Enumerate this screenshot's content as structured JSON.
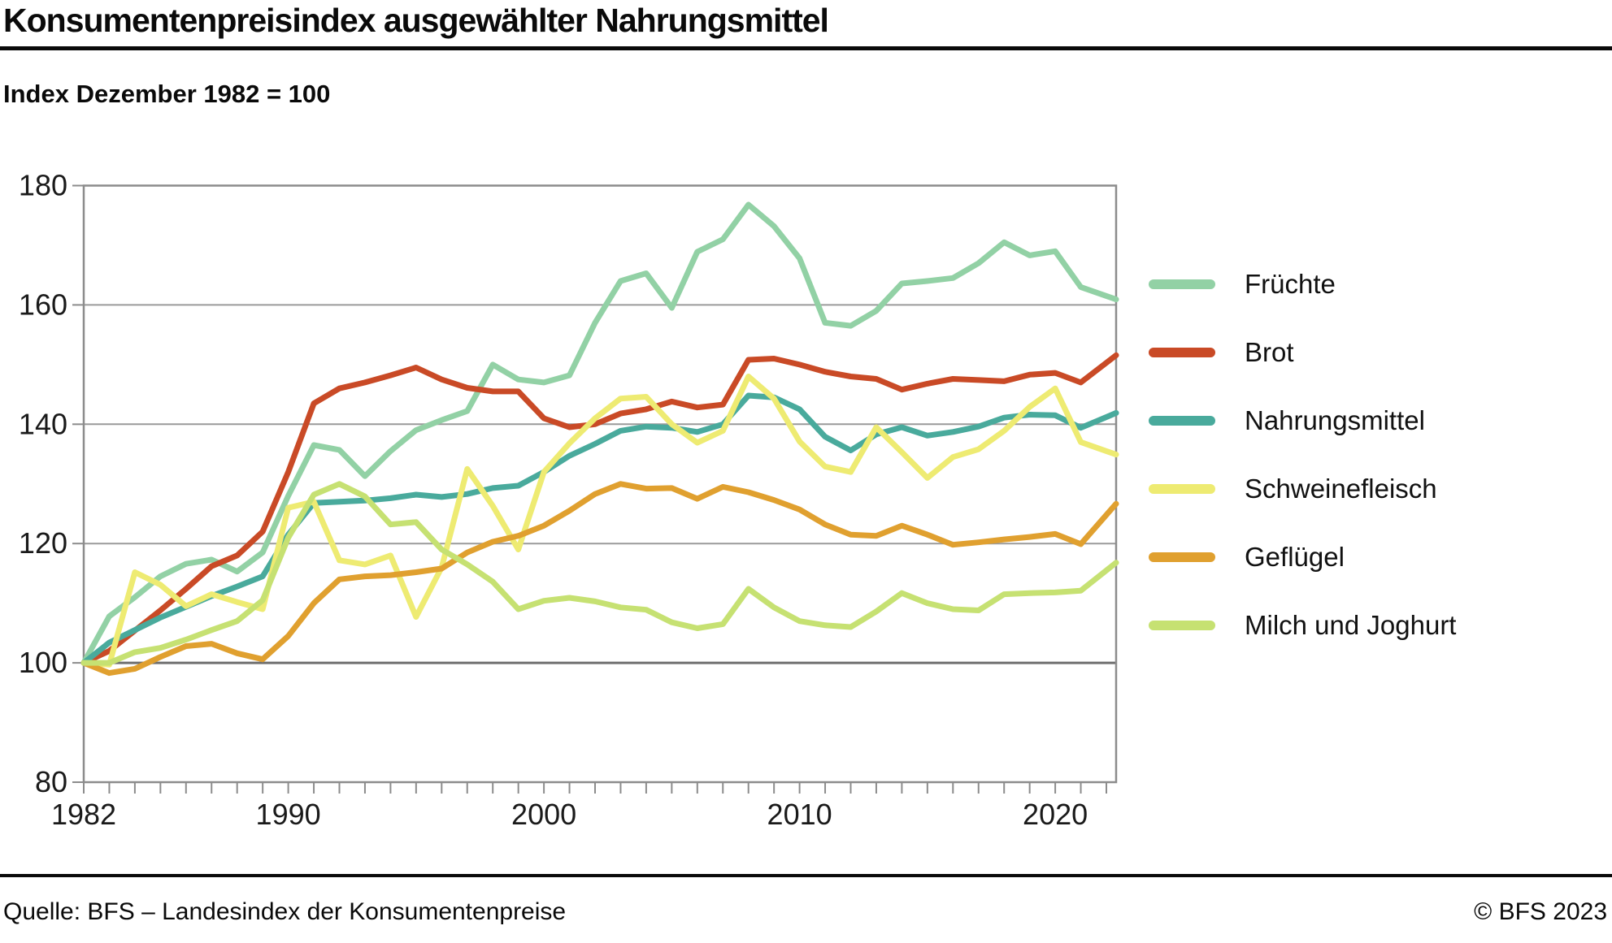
{
  "title": "Konsumentenpreisindex ausgewählter Nahrungsmittel",
  "subtitle": "Index Dezember 1982 = 100",
  "footer": {
    "source": "Quelle: BFS – Landesindex der Konsumentenpreise",
    "copyright": "© BFS 2023"
  },
  "chart_data": {
    "type": "line",
    "title": "Konsumentenpreisindex ausgewählter Nahrungsmittel",
    "subtitle": "Index Dezember 1982 = 100",
    "xlabel": "",
    "ylabel": "",
    "xlim": [
      1982,
      2022.4
    ],
    "ylim": [
      80,
      180
    ],
    "grid": "horizontal",
    "grid_values": [
      100,
      120,
      140,
      160
    ],
    "emphasized_grid_value": 100,
    "y_ticks": [
      80,
      100,
      120,
      140,
      160,
      180
    ],
    "x_tick_labels": [
      1982,
      1990,
      2000,
      2010,
      2020
    ],
    "legend_position": "right",
    "x": [
      1982,
      1983,
      1984,
      1985,
      1986,
      1987,
      1988,
      1989,
      1990,
      1991,
      1992,
      1993,
      1994,
      1995,
      1996,
      1997,
      1998,
      1999,
      2000,
      2001,
      2002,
      2003,
      2004,
      2005,
      2006,
      2007,
      2008,
      2009,
      2010,
      2011,
      2012,
      2013,
      2014,
      2015,
      2016,
      2017,
      2018,
      2019,
      2020,
      2021,
      2022
    ],
    "series": [
      {
        "name": "Früchte",
        "color": "#92d1a5",
        "values": [
          100,
          107.8,
          111,
          114.5,
          116.6,
          117.3,
          115.3,
          118.5,
          128,
          136.5,
          135.7,
          131.3,
          135.5,
          139,
          140.7,
          142.2,
          150,
          147.5,
          147,
          148.2,
          157,
          164,
          165.3,
          159.5,
          168.9,
          171,
          176.8,
          173.2,
          167.8,
          157,
          156.5,
          159,
          163.6,
          164,
          164.5,
          167,
          170.5,
          168.3,
          169,
          163,
          161.5
        ]
      },
      {
        "name": "Brot",
        "color": "#c94a26",
        "values": [
          100,
          102,
          105.4,
          108.8,
          112.4,
          116.2,
          118,
          122,
          132,
          143.5,
          146,
          147,
          148.2,
          149.5,
          147.5,
          146.1,
          145.5,
          145.5,
          141,
          139.5,
          140,
          141.8,
          142.5,
          143.8,
          142.8,
          143.3,
          150.8,
          151,
          150,
          148.8,
          148,
          147.6,
          145.8,
          146.8,
          147.6,
          147.4,
          147.2,
          148.3,
          148.6,
          147,
          150.3
        ]
      },
      {
        "name": "Nahrungsmittel",
        "color": "#49aa9c",
        "values": [
          100,
          103.4,
          105.5,
          107.6,
          109.4,
          111.2,
          112.8,
          114.5,
          121.5,
          126.8,
          127,
          127.2,
          127.6,
          128.2,
          127.8,
          128.3,
          129.3,
          129.7,
          132,
          134.7,
          136.7,
          138.9,
          139.6,
          139.4,
          138.7,
          140,
          144.8,
          144.5,
          142.5,
          137.9,
          135.6,
          138.3,
          139.5,
          138.1,
          138.7,
          139.6,
          141.1,
          141.6,
          141.5,
          139.4,
          141.2
        ]
      },
      {
        "name": "Schweinefleisch",
        "color": "#eeeb72",
        "values": [
          100,
          99.7,
          115.2,
          113.1,
          109.5,
          111.5,
          110.2,
          109,
          126,
          127,
          117.2,
          116.5,
          118,
          107.7,
          116,
          132.5,
          126.3,
          119,
          132,
          136.8,
          141,
          144.3,
          144.6,
          140,
          136.9,
          138.9,
          148,
          144.3,
          137.1,
          132.9,
          132,
          139.5,
          135.3,
          131,
          134.5,
          135.8,
          138.9,
          142.9,
          146,
          137,
          135.5
        ]
      },
      {
        "name": "Geflügel",
        "color": "#e0a02f",
        "values": [
          100,
          98.3,
          99,
          101,
          102.8,
          103.2,
          101.6,
          100.6,
          104.5,
          110,
          114,
          114.5,
          114.7,
          115.2,
          115.8,
          118.5,
          120.3,
          121.3,
          123,
          125.5,
          128.3,
          130,
          129.2,
          129.3,
          127.5,
          129.5,
          128.6,
          127.3,
          125.7,
          123.2,
          121.5,
          121.3,
          123,
          121.5,
          119.8,
          120.2,
          120.7,
          121.1,
          121.6,
          119.9,
          124.8
        ]
      },
      {
        "name": "Milch und Joghurt",
        "color": "#c6e172",
        "values": [
          100,
          100,
          101.8,
          102.5,
          103.9,
          105.5,
          107,
          110.5,
          121,
          128.2,
          130,
          127.9,
          123.2,
          123.6,
          119,
          116.5,
          113.6,
          109,
          110.4,
          110.9,
          110.3,
          109.3,
          108.9,
          106.8,
          105.8,
          106.5,
          112.4,
          109.3,
          107,
          106.3,
          106,
          108.6,
          111.7,
          110,
          109,
          108.8,
          111.5,
          111.7,
          111.8,
          112.1,
          115.5
        ]
      }
    ],
    "styles": {
      "plot_border_color": "#8c8c8c",
      "grid_color": "#9a9a9a",
      "emphasized_grid_color": "#6f6f6f",
      "tick_color": "#8c8c8c",
      "axis_text_color": "#1a1a1a",
      "line_width": 7
    }
  }
}
